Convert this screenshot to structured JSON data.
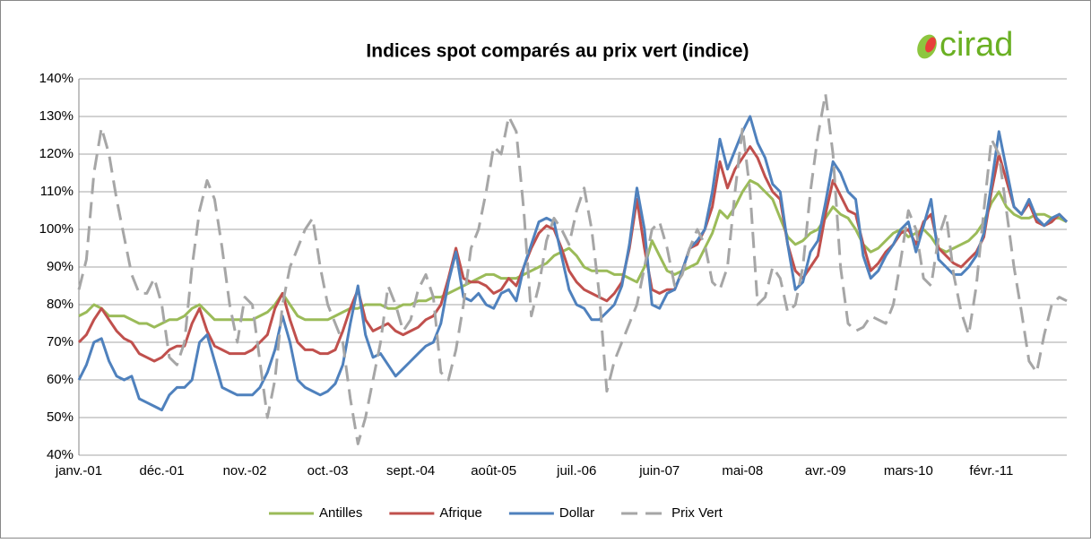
{
  "chart_data": {
    "type": "line",
    "title": "Indices spot comparés au prix vert (indice)",
    "logo": "cirad",
    "categories": [
      "janv.-01",
      null,
      null,
      null,
      null,
      null,
      null,
      null,
      null,
      null,
      null,
      "déc.-01",
      null,
      null,
      null,
      null,
      null,
      null,
      null,
      null,
      null,
      null,
      "nov.-02",
      null,
      null,
      null,
      null,
      null,
      null,
      null,
      null,
      null,
      null,
      "oct.-03",
      null,
      null,
      null,
      null,
      null,
      null,
      null,
      null,
      null,
      null,
      "sept.-04",
      null,
      null,
      null,
      null,
      null,
      null,
      null,
      null,
      null,
      null,
      "août-05",
      null,
      null,
      null,
      null,
      null,
      null,
      null,
      null,
      null,
      null,
      "juil.-06",
      null,
      null,
      null,
      null,
      null,
      null,
      null,
      null,
      null,
      null,
      "juin-07",
      null,
      null,
      null,
      null,
      null,
      null,
      null,
      null,
      null,
      null,
      "mai-08",
      null,
      null,
      null,
      null,
      null,
      null,
      null,
      null,
      null,
      null,
      "avr.-09",
      null,
      null,
      null,
      null,
      null,
      null,
      null,
      null,
      null,
      null,
      "mars-10",
      null,
      null,
      null,
      null,
      null,
      null,
      null,
      null,
      null,
      null,
      "févr.-11",
      null,
      null,
      null,
      null,
      null,
      null,
      null,
      null,
      null,
      null
    ],
    "series": [
      {
        "name": "Antilles",
        "color": "#9bbb59",
        "values": [
          77,
          78,
          80,
          79,
          77,
          77,
          77,
          76,
          75,
          75,
          74,
          75,
          76,
          76,
          77,
          79,
          80,
          78,
          76,
          76,
          76,
          76,
          76,
          76,
          77,
          78,
          80,
          83,
          80,
          77,
          76,
          76,
          76,
          76,
          77,
          78,
          79,
          79,
          80,
          80,
          80,
          79,
          79,
          80,
          80,
          81,
          81,
          82,
          82,
          83,
          84,
          85,
          86,
          87,
          88,
          88,
          87,
          87,
          87,
          88,
          89,
          90,
          91,
          93,
          94,
          95,
          93,
          90,
          89,
          89,
          89,
          88,
          88,
          87,
          86,
          90,
          97,
          93,
          89,
          88,
          89,
          90,
          91,
          95,
          99,
          105,
          103,
          106,
          110,
          113,
          112,
          110,
          108,
          103,
          98,
          96,
          97,
          99,
          100,
          103,
          106,
          104,
          103,
          100,
          96,
          94,
          95,
          97,
          99,
          100,
          98,
          99,
          100,
          98,
          95,
          94,
          95,
          96,
          97,
          99,
          102,
          107,
          110,
          106,
          104,
          103,
          103,
          104,
          104,
          103,
          103,
          102
        ]
      },
      {
        "name": "Afrique",
        "color": "#c0504d",
        "values": [
          70,
          72,
          76,
          79,
          76,
          73,
          71,
          70,
          67,
          66,
          65,
          66,
          68,
          69,
          69,
          75,
          79,
          73,
          69,
          68,
          67,
          67,
          67,
          68,
          70,
          72,
          79,
          83,
          76,
          70,
          68,
          68,
          67,
          67,
          68,
          73,
          79,
          84,
          76,
          73,
          74,
          75,
          73,
          72,
          73,
          74,
          76,
          77,
          80,
          87,
          95,
          87,
          86,
          86,
          85,
          83,
          84,
          87,
          85,
          90,
          95,
          99,
          101,
          100,
          95,
          89,
          86,
          84,
          83,
          82,
          81,
          83,
          86,
          95,
          108,
          95,
          84,
          83,
          84,
          84,
          89,
          95,
          96,
          100,
          106,
          118,
          111,
          116,
          119,
          122,
          119,
          114,
          110,
          108,
          96,
          89,
          87,
          90,
          93,
          104,
          113,
          109,
          105,
          104,
          96,
          89,
          91,
          94,
          96,
          99,
          100,
          96,
          102,
          104,
          95,
          93,
          91,
          90,
          92,
          94,
          98,
          110,
          120,
          113,
          106,
          104,
          107,
          102,
          101,
          102,
          104,
          102
        ]
      },
      {
        "name": "Dollar",
        "color": "#4f81bd",
        "values": [
          60,
          64,
          70,
          71,
          65,
          61,
          60,
          61,
          55,
          54,
          53,
          52,
          56,
          58,
          58,
          60,
          70,
          72,
          65,
          58,
          57,
          56,
          56,
          56,
          58,
          62,
          68,
          77,
          70,
          60,
          58,
          57,
          56,
          57,
          59,
          64,
          75,
          85,
          72,
          66,
          67,
          64,
          61,
          63,
          65,
          67,
          69,
          70,
          75,
          86,
          94,
          82,
          81,
          83,
          80,
          79,
          83,
          84,
          81,
          90,
          96,
          102,
          103,
          102,
          93,
          84,
          80,
          79,
          76,
          76,
          78,
          80,
          85,
          96,
          111,
          100,
          80,
          79,
          83,
          84,
          89,
          95,
          97,
          100,
          110,
          124,
          116,
          121,
          126,
          130,
          123,
          119,
          112,
          110,
          96,
          84,
          86,
          94,
          97,
          107,
          118,
          115,
          110,
          108,
          93,
          87,
          89,
          93,
          96,
          100,
          102,
          94,
          101,
          108,
          92,
          90,
          88,
          88,
          90,
          93,
          99,
          112,
          126,
          116,
          106,
          104,
          108,
          103,
          101,
          103,
          104,
          102
        ]
      },
      {
        "name": "Prix Vert",
        "color": "#a6a6a6",
        "dashed": true,
        "values": [
          84,
          92,
          115,
          127,
          120,
          108,
          98,
          88,
          83,
          83,
          87,
          80,
          66,
          64,
          70,
          90,
          105,
          113,
          108,
          95,
          80,
          70,
          82,
          80,
          65,
          50,
          60,
          80,
          90,
          95,
          100,
          103,
          90,
          80,
          75,
          70,
          55,
          43,
          50,
          60,
          70,
          85,
          80,
          73,
          76,
          84,
          88,
          82,
          62,
          60,
          68,
          80,
          95,
          100,
          110,
          122,
          120,
          130,
          126,
          105,
          77,
          85,
          97,
          103,
          100,
          96,
          105,
          111,
          100,
          83,
          57,
          65,
          70,
          75,
          80,
          90,
          100,
          102,
          95,
          85,
          88,
          95,
          100,
          96,
          86,
          84,
          90,
          110,
          127,
          110,
          80,
          82,
          90,
          87,
          78,
          80,
          90,
          110,
          125,
          136,
          120,
          90,
          75,
          73,
          74,
          77,
          76,
          75,
          80,
          92,
          105,
          100,
          87,
          85,
          98,
          104,
          88,
          78,
          72,
          85,
          105,
          124,
          120,
          105,
          90,
          78,
          65,
          62,
          72,
          80,
          82,
          81
        ]
      }
    ],
    "ylim": [
      40,
      140
    ],
    "yticks": [
      {
        "value": 40,
        "label": "40%"
      },
      {
        "value": 50,
        "label": "50%"
      },
      {
        "value": 60,
        "label": "60%"
      },
      {
        "value": 70,
        "label": "70%"
      },
      {
        "value": 80,
        "label": "80%"
      },
      {
        "value": 90,
        "label": "90%"
      },
      {
        "value": 100,
        "label": "100%"
      },
      {
        "value": 110,
        "label": "110%"
      },
      {
        "value": 120,
        "label": "120%"
      },
      {
        "value": 130,
        "label": "130%"
      },
      {
        "value": 140,
        "label": "140%"
      }
    ],
    "grid": true,
    "legend": "bottom"
  }
}
